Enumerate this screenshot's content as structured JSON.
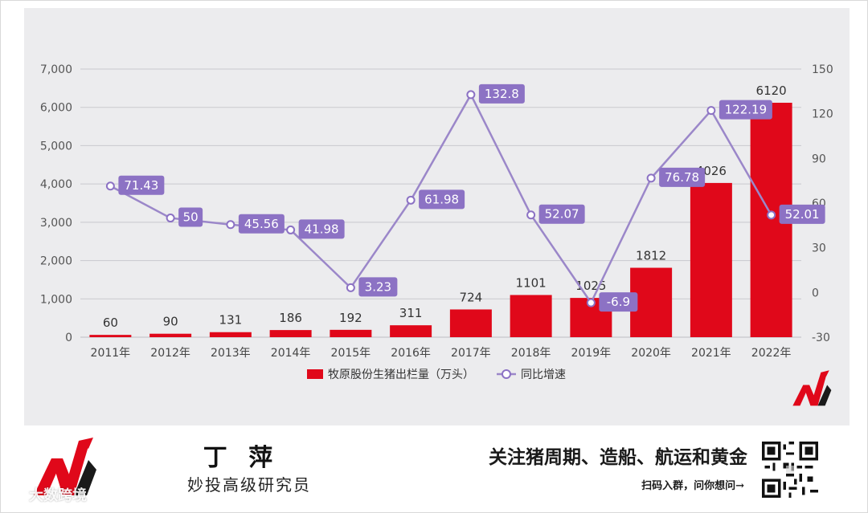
{
  "chart_data": {
    "type": "bar",
    "categories": [
      "2011年",
      "2012年",
      "2013年",
      "2014年",
      "2015年",
      "2016年",
      "2017年",
      "2018年",
      "2019年",
      "2020年",
      "2021年",
      "2022年"
    ],
    "series": [
      {
        "name": "牧原股份生猪出栏量（万头）",
        "type": "bar",
        "axis": "left",
        "color": "#e0081a",
        "values": [
          60,
          90,
          131,
          186,
          192,
          311,
          724,
          1101,
          1025,
          1812,
          4026,
          6120
        ],
        "labels": [
          "60",
          "90",
          "131",
          "186",
          "192",
          "311",
          "724",
          "1101",
          "1025",
          "1812",
          "4026",
          "6120"
        ]
      },
      {
        "name": "同比增速",
        "type": "line",
        "axis": "right",
        "color": "#9b87c9",
        "values": [
          71.43,
          50,
          45.56,
          41.98,
          3.23,
          61.98,
          132.8,
          52.07,
          -6.9,
          76.78,
          122.19,
          52.01
        ],
        "labels": [
          "71.43",
          "50",
          "45.56",
          "41.98",
          "3.23",
          "61.98",
          "132.8",
          "52.07",
          "-6.9",
          "76.78",
          "122.19",
          "52.01"
        ]
      }
    ],
    "left_axis": {
      "ylim": [
        0,
        7000
      ],
      "ticks": [
        "0",
        "1,000",
        "2,000",
        "3,000",
        "4,000",
        "5,000",
        "6,000",
        "7,000"
      ]
    },
    "right_axis": {
      "ylim": [
        -30,
        150
      ],
      "ticks": [
        "-30",
        "0",
        "30",
        "60",
        "90",
        "120",
        "150"
      ]
    },
    "grid": true,
    "legend_position": "bottom",
    "colors": {
      "bar": "#e0081a",
      "line": "#9b87c9",
      "label_box": "#8c72c4",
      "panel_bg": "#ececee"
    }
  },
  "footer": {
    "author_name": "丁 萍",
    "author_title": "妙投高级研究员",
    "tagline": "关注猪周期、造船、航运和黄金",
    "scan_text": "扫码入群，问你想问→",
    "watermark": "大数跨境"
  },
  "icons": {
    "brand_logo": "m-brand-logo-icon",
    "qr": "qr-code-icon",
    "watermark_logo": "weibo-style-icon"
  }
}
